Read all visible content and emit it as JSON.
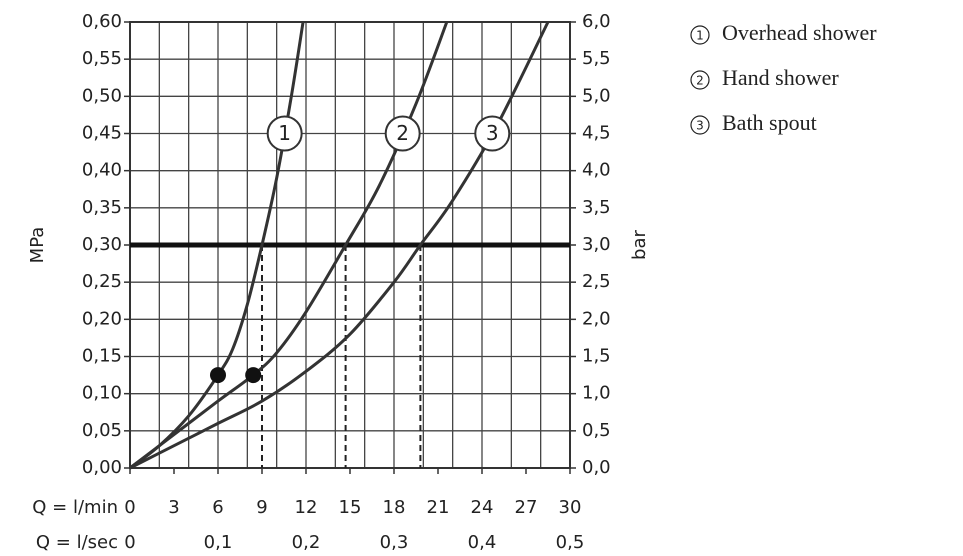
{
  "chart_data": {
    "type": "line",
    "y_label": "MPa",
    "y2_label": "bar",
    "x_label": "Q = l/min",
    "x2_label": "Q = l/sec",
    "xlim": [
      0,
      30
    ],
    "xticks": [
      0,
      3,
      6,
      9,
      12,
      15,
      18,
      21,
      24,
      27,
      30
    ],
    "xgrid": [
      0,
      2,
      4,
      6,
      8,
      10,
      12,
      14,
      16,
      18,
      20,
      22,
      24,
      26,
      28,
      30
    ],
    "x2lim": [
      0,
      0.5
    ],
    "x2ticks": [
      0,
      {
        "value": 0.1,
        "label": "0,1"
      },
      {
        "value": 0.2,
        "label": "0,2"
      },
      {
        "value": 0.3,
        "label": "0,3"
      },
      {
        "value": 0.4,
        "label": "0,4"
      },
      {
        "value": 0.5,
        "label": "0,5"
      }
    ],
    "ylim": [
      0,
      0.6
    ],
    "yticks": [
      {
        "value": 0,
        "label": "0,00"
      },
      {
        "value": 0.05,
        "label": "0,05"
      },
      {
        "value": 0.1,
        "label": "0,10"
      },
      {
        "value": 0.15,
        "label": "0,15"
      },
      {
        "value": 0.2,
        "label": "0,20"
      },
      {
        "value": 0.25,
        "label": "0,25"
      },
      {
        "value": 0.3,
        "label": "0,30"
      },
      {
        "value": 0.35,
        "label": "0,35"
      },
      {
        "value": 0.4,
        "label": "0,40"
      },
      {
        "value": 0.45,
        "label": "0,45"
      },
      {
        "value": 0.5,
        "label": "0,50"
      },
      {
        "value": 0.55,
        "label": "0,55"
      },
      {
        "value": 0.6,
        "label": "0,60"
      }
    ],
    "y2lim": [
      0,
      6
    ],
    "y2ticks": [
      {
        "value": 0,
        "label": "0,0"
      },
      {
        "value": 0.5,
        "label": "0,5"
      },
      {
        "value": 1,
        "label": "1,0"
      },
      {
        "value": 1.5,
        "label": "1,5"
      },
      {
        "value": 2,
        "label": "2,0"
      },
      {
        "value": 2.5,
        "label": "2,5"
      },
      {
        "value": 3,
        "label": "3,0"
      },
      {
        "value": 3.5,
        "label": "3,5"
      },
      {
        "value": 4,
        "label": "4,0"
      },
      {
        "value": 4.5,
        "label": "4,5"
      },
      {
        "value": 5,
        "label": "5,0"
      },
      {
        "value": 5.5,
        "label": "5,5"
      },
      {
        "value": 6,
        "label": "6,0"
      }
    ],
    "grid": true,
    "reference_y": 0.3,
    "points": {
      "x": [
        6,
        8.4
      ],
      "y": [
        0.125,
        0.125
      ]
    },
    "series": [
      {
        "name": "Overhead shower",
        "label": "1",
        "color": "#333333",
        "x": [
          0,
          2,
          4,
          6,
          7,
          8,
          9,
          10,
          11,
          11.8
        ],
        "values": [
          0,
          0.03,
          0.07,
          0.125,
          0.16,
          0.22,
          0.3,
          0.39,
          0.5,
          0.6
        ]
      },
      {
        "name": "Hand shower",
        "label": "2",
        "color": "#333333",
        "x": [
          0,
          3,
          6,
          8.4,
          10,
          12,
          14.7,
          17,
          19.5,
          21.6
        ],
        "values": [
          0,
          0.045,
          0.09,
          0.125,
          0.155,
          0.21,
          0.3,
          0.38,
          0.49,
          0.6
        ]
      },
      {
        "name": "Bath spout",
        "label": "3",
        "color": "#333333",
        "x": [
          0,
          3,
          6,
          9,
          12,
          15,
          18,
          19.8,
          22,
          25,
          28.5
        ],
        "values": [
          0,
          0.03,
          0.06,
          0.09,
          0.13,
          0.18,
          0.25,
          0.3,
          0.36,
          0.46,
          0.6
        ]
      }
    ]
  }
}
